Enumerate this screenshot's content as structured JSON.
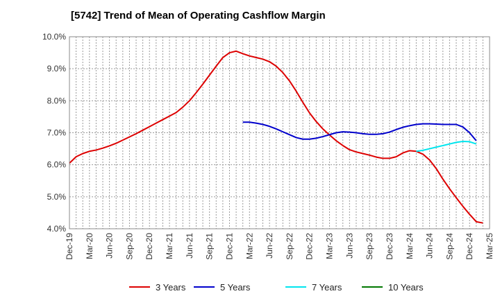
{
  "chart_data": {
    "type": "line",
    "title": "[5742]  Trend of Mean of Operating Cashflow Margin",
    "xlabel": "",
    "ylabel": "",
    "x_range": [
      "2019-12",
      "2025-03"
    ],
    "ylim": [
      4.0,
      10.0
    ],
    "y_ticks": [
      "4.0%",
      "5.0%",
      "6.0%",
      "7.0%",
      "8.0%",
      "9.0%",
      "10.0%"
    ],
    "x_ticks": [
      "Dec-19",
      "Mar-20",
      "Jun-20",
      "Sep-20",
      "Dec-20",
      "Mar-21",
      "Jun-21",
      "Sep-21",
      "Dec-21",
      "Mar-22",
      "Jun-22",
      "Sep-22",
      "Dec-22",
      "Mar-23",
      "Jun-23",
      "Sep-23",
      "Dec-23",
      "Mar-24",
      "Jun-24",
      "Sep-24",
      "Dec-24",
      "Mar-25"
    ],
    "grid": true,
    "legend_position": "bottom",
    "series": [
      {
        "name": "3 Years",
        "color": "#dd0000",
        "points": [
          [
            "2019-12",
            6.05
          ],
          [
            "2020-01",
            6.25
          ],
          [
            "2020-02",
            6.35
          ],
          [
            "2020-03",
            6.42
          ],
          [
            "2020-04",
            6.46
          ],
          [
            "2020-05",
            6.52
          ],
          [
            "2020-06",
            6.59
          ],
          [
            "2020-07",
            6.67
          ],
          [
            "2020-08",
            6.77
          ],
          [
            "2020-09",
            6.87
          ],
          [
            "2020-10",
            6.97
          ],
          [
            "2020-11",
            7.08
          ],
          [
            "2020-12",
            7.19
          ],
          [
            "2021-01",
            7.3
          ],
          [
            "2021-02",
            7.41
          ],
          [
            "2021-03",
            7.52
          ],
          [
            "2021-04",
            7.63
          ],
          [
            "2021-05",
            7.8
          ],
          [
            "2021-06",
            8.0
          ],
          [
            "2021-07",
            8.25
          ],
          [
            "2021-08",
            8.52
          ],
          [
            "2021-09",
            8.8
          ],
          [
            "2021-10",
            9.08
          ],
          [
            "2021-11",
            9.35
          ],
          [
            "2021-12",
            9.5
          ],
          [
            "2022-01",
            9.55
          ],
          [
            "2022-02",
            9.47
          ],
          [
            "2022-03",
            9.4
          ],
          [
            "2022-04",
            9.35
          ],
          [
            "2022-05",
            9.3
          ],
          [
            "2022-06",
            9.22
          ],
          [
            "2022-07",
            9.08
          ],
          [
            "2022-08",
            8.88
          ],
          [
            "2022-09",
            8.62
          ],
          [
            "2022-10",
            8.3
          ],
          [
            "2022-11",
            7.95
          ],
          [
            "2022-12",
            7.62
          ],
          [
            "2023-01",
            7.35
          ],
          [
            "2023-02",
            7.12
          ],
          [
            "2023-03",
            6.93
          ],
          [
            "2023-04",
            6.75
          ],
          [
            "2023-05",
            6.6
          ],
          [
            "2023-06",
            6.47
          ],
          [
            "2023-07",
            6.4
          ],
          [
            "2023-08",
            6.35
          ],
          [
            "2023-09",
            6.3
          ],
          [
            "2023-10",
            6.24
          ],
          [
            "2023-11",
            6.2
          ],
          [
            "2023-12",
            6.2
          ],
          [
            "2024-01",
            6.25
          ],
          [
            "2024-02",
            6.37
          ],
          [
            "2024-03",
            6.44
          ],
          [
            "2024-04",
            6.42
          ],
          [
            "2024-05",
            6.33
          ],
          [
            "2024-06",
            6.15
          ],
          [
            "2024-07",
            5.88
          ],
          [
            "2024-08",
            5.55
          ],
          [
            "2024-09",
            5.25
          ],
          [
            "2024-10",
            4.97
          ],
          [
            "2024-11",
            4.7
          ],
          [
            "2024-12",
            4.45
          ],
          [
            "2025-01",
            4.22
          ],
          [
            "2025-02",
            4.18
          ]
        ]
      },
      {
        "name": "5 Years",
        "color": "#0000cc",
        "points": [
          [
            "2022-02",
            7.33
          ],
          [
            "2022-03",
            7.33
          ],
          [
            "2022-04",
            7.3
          ],
          [
            "2022-05",
            7.26
          ],
          [
            "2022-06",
            7.2
          ],
          [
            "2022-07",
            7.12
          ],
          [
            "2022-08",
            7.03
          ],
          [
            "2022-09",
            6.94
          ],
          [
            "2022-10",
            6.85
          ],
          [
            "2022-11",
            6.8
          ],
          [
            "2022-12",
            6.8
          ],
          [
            "2023-01",
            6.83
          ],
          [
            "2023-02",
            6.88
          ],
          [
            "2023-03",
            6.94
          ],
          [
            "2023-04",
            7.0
          ],
          [
            "2023-05",
            7.03
          ],
          [
            "2023-06",
            7.02
          ],
          [
            "2023-07",
            7.0
          ],
          [
            "2023-08",
            6.97
          ],
          [
            "2023-09",
            6.95
          ],
          [
            "2023-10",
            6.95
          ],
          [
            "2023-11",
            6.97
          ],
          [
            "2023-12",
            7.02
          ],
          [
            "2024-01",
            7.1
          ],
          [
            "2024-02",
            7.17
          ],
          [
            "2024-03",
            7.22
          ],
          [
            "2024-04",
            7.26
          ],
          [
            "2024-05",
            7.28
          ],
          [
            "2024-06",
            7.28
          ],
          [
            "2024-07",
            7.27
          ],
          [
            "2024-08",
            7.26
          ],
          [
            "2024-09",
            7.26
          ],
          [
            "2024-10",
            7.26
          ],
          [
            "2024-11",
            7.18
          ],
          [
            "2024-12",
            7.0
          ],
          [
            "2025-01",
            6.75
          ]
        ]
      },
      {
        "name": "7 Years",
        "color": "#00e5ee",
        "points": [
          [
            "2024-04",
            6.42
          ],
          [
            "2024-05",
            6.45
          ],
          [
            "2024-06",
            6.5
          ],
          [
            "2024-07",
            6.55
          ],
          [
            "2024-08",
            6.6
          ],
          [
            "2024-09",
            6.65
          ],
          [
            "2024-10",
            6.7
          ],
          [
            "2024-11",
            6.73
          ],
          [
            "2024-12",
            6.72
          ],
          [
            "2025-01",
            6.65
          ]
        ]
      },
      {
        "name": "10 Years",
        "color": "#007700",
        "points": []
      }
    ]
  }
}
